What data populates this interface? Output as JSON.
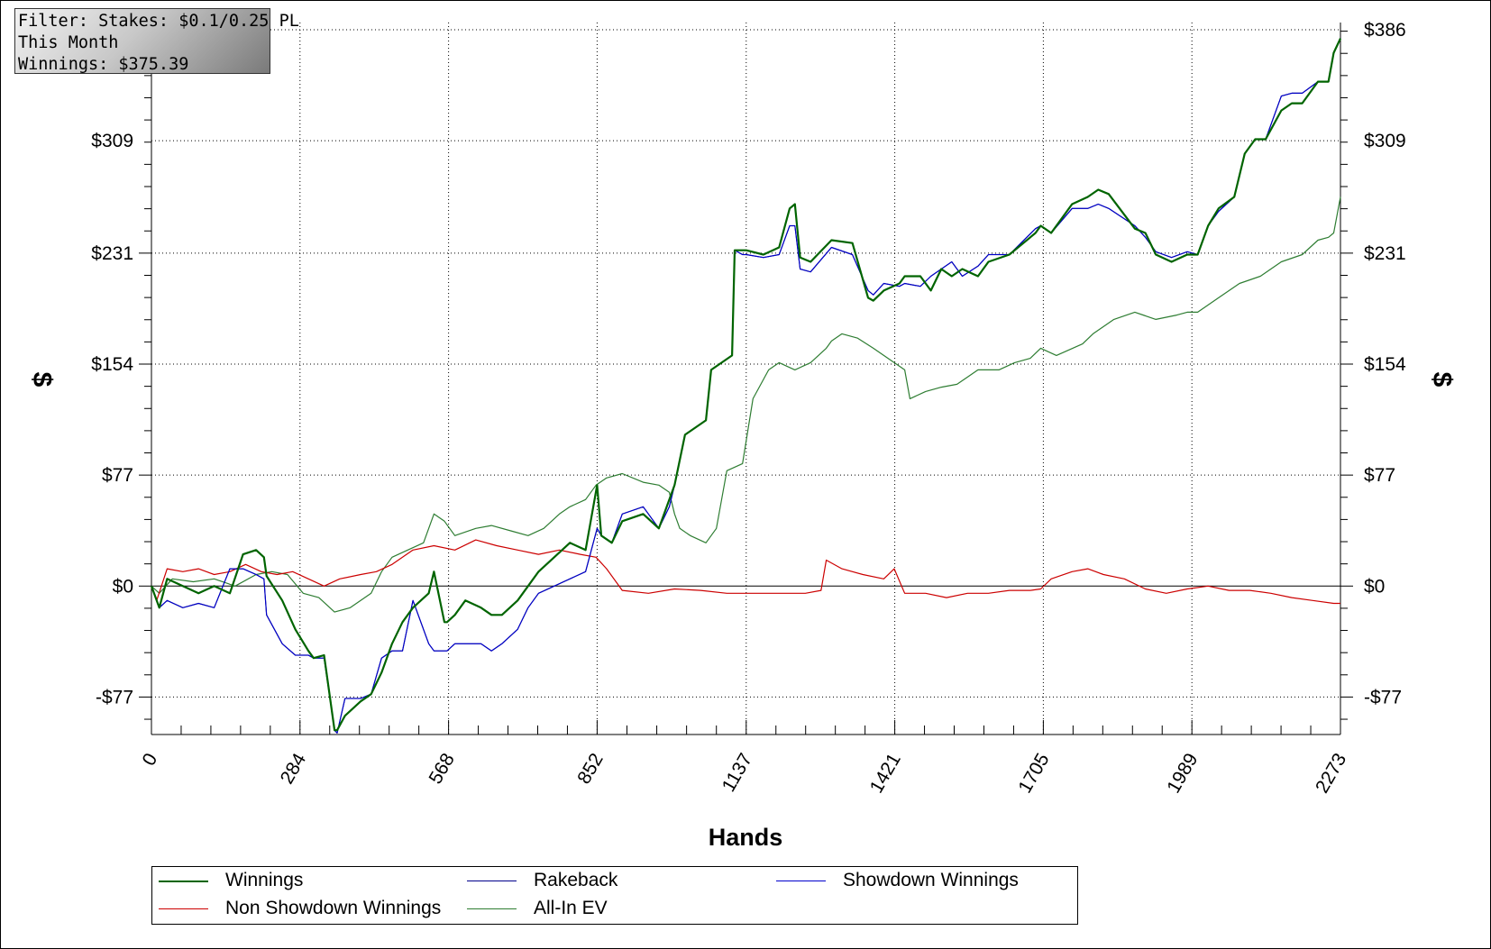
{
  "filter_box": {
    "line1": "Filter: Stakes: $0.1/0.25 PL",
    "line2": "This Month",
    "line3": "Winnings: $375.39"
  },
  "chart_data": {
    "type": "line",
    "xlabel": "Hands",
    "ylabel": "$",
    "xlim": [
      0,
      2273
    ],
    "ylim": [
      -103,
      391
    ],
    "x_ticks": [
      0,
      284,
      568,
      852,
      1137,
      1421,
      1705,
      1989,
      2273
    ],
    "y_ticks": [
      -77,
      0,
      77,
      154,
      231,
      309,
      386
    ],
    "y_tick_labels": [
      "-$77",
      "$0",
      "$77",
      "$154",
      "$231",
      "$309",
      "$386"
    ],
    "grid": true,
    "legend_placement": "bottom",
    "series": [
      {
        "name": "Winnings",
        "color": "#006400",
        "x": [
          0,
          15,
          30,
          60,
          90,
          120,
          150,
          175,
          200,
          215,
          220,
          250,
          275,
          300,
          310,
          330,
          350,
          355,
          370,
          400,
          420,
          440,
          460,
          480,
          500,
          530,
          540,
          560,
          565,
          580,
          600,
          630,
          650,
          670,
          700,
          720,
          740,
          770,
          800,
          830,
          852,
          860,
          880,
          900,
          940,
          970,
          990,
          1000,
          1020,
          1060,
          1070,
          1090,
          1110,
          1115,
          1130,
          1137,
          1170,
          1200,
          1220,
          1230,
          1240,
          1260,
          1300,
          1340,
          1370,
          1380,
          1400,
          1430,
          1440,
          1470,
          1490,
          1510,
          1530,
          1550,
          1580,
          1600,
          1640,
          1690,
          1700,
          1720,
          1760,
          1790,
          1810,
          1830,
          1880,
          1900,
          1920,
          1950,
          1980,
          2000,
          2020,
          2040,
          2070,
          2090,
          2110,
          2130,
          2160,
          2180,
          2200,
          2230,
          2250,
          2260,
          2273
        ],
        "y": [
          0,
          -15,
          5,
          0,
          -5,
          0,
          -5,
          22,
          25,
          20,
          7,
          -10,
          -30,
          -45,
          -50,
          -48,
          -100,
          -100,
          -90,
          -80,
          -75,
          -60,
          -40,
          -25,
          -15,
          -5,
          10,
          -25,
          -25,
          -20,
          -10,
          -15,
          -20,
          -20,
          -10,
          0,
          10,
          20,
          30,
          25,
          70,
          35,
          30,
          45,
          50,
          40,
          60,
          70,
          105,
          115,
          150,
          155,
          160,
          233,
          233,
          233,
          230,
          235,
          262,
          265,
          228,
          225,
          240,
          238,
          200,
          198,
          205,
          210,
          215,
          215,
          205,
          220,
          215,
          220,
          215,
          225,
          230,
          245,
          250,
          245,
          265,
          270,
          275,
          272,
          248,
          245,
          230,
          225,
          230,
          230,
          250,
          262,
          270,
          300,
          310,
          310,
          330,
          335,
          335,
          350,
          350,
          370,
          380
        ]
      },
      {
        "name": "Rakeback",
        "color": "#00008b",
        "x": [
          0,
          15,
          30,
          60,
          90,
          120,
          150,
          175,
          200,
          215,
          220,
          250,
          275,
          300,
          310,
          330,
          350,
          355,
          370,
          400,
          420,
          440,
          460,
          480,
          500,
          530,
          540,
          560,
          565,
          580,
          600,
          630,
          650,
          670,
          700,
          720,
          740,
          770,
          800,
          830,
          852,
          860,
          880,
          900,
          940,
          970,
          990,
          1000,
          1020,
          1060,
          1070,
          1090,
          1110,
          1115,
          1130,
          1137,
          1170,
          1200,
          1220,
          1230,
          1240,
          1260,
          1300,
          1340,
          1370,
          1380,
          1400,
          1430,
          1440,
          1470,
          1490,
          1510,
          1530,
          1550,
          1580,
          1600,
          1640,
          1690,
          1700,
          1720,
          1760,
          1790,
          1810,
          1830,
          1880,
          1900,
          1920,
          1950,
          1980,
          2000,
          2020,
          2040,
          2070,
          2090,
          2110,
          2130,
          2160,
          2180,
          2200,
          2230,
          2250,
          2260,
          2273
        ],
        "y": [
          0,
          -15,
          -10,
          -15,
          -12,
          -15,
          12,
          12,
          8,
          5,
          -20,
          -40,
          -48,
          -48,
          -50,
          -50,
          -100,
          -102,
          -78,
          -78,
          -75,
          -50,
          -45,
          -45,
          -10,
          -40,
          -45,
          -45,
          -45,
          -40,
          -40,
          -40,
          -45,
          -40,
          -30,
          -15,
          -5,
          0,
          5,
          10,
          40,
          35,
          30,
          50,
          55,
          40,
          55,
          70,
          105,
          115,
          150,
          155,
          160,
          233,
          230,
          230,
          228,
          230,
          250,
          250,
          220,
          218,
          235,
          230,
          205,
          202,
          210,
          208,
          210,
          208,
          215,
          220,
          225,
          215,
          222,
          230,
          230,
          248,
          250,
          245,
          262,
          262,
          265,
          262,
          250,
          242,
          232,
          228,
          232,
          230,
          250,
          260,
          270,
          300,
          310,
          310,
          340,
          342,
          342,
          350,
          350,
          370,
          380
        ]
      },
      {
        "name": "Showdown Winnings",
        "color": "#0000cd",
        "x": [
          0,
          15,
          30,
          60,
          90,
          120,
          150,
          175,
          200,
          215,
          220,
          250,
          275,
          300,
          310,
          330,
          350,
          355,
          370,
          400,
          420,
          440,
          460,
          480,
          500,
          530,
          540,
          560,
          565,
          580,
          600,
          630,
          650,
          670,
          700,
          720,
          740,
          770,
          800,
          830,
          852,
          860,
          880,
          900,
          940,
          970,
          990,
          1000,
          1020,
          1060,
          1070,
          1090,
          1110,
          1115,
          1130,
          1137,
          1170,
          1200,
          1220,
          1230,
          1240,
          1260,
          1300,
          1340,
          1370,
          1380,
          1400,
          1430,
          1440,
          1470,
          1490,
          1510,
          1530,
          1550,
          1580,
          1600,
          1640,
          1690,
          1700,
          1720,
          1760,
          1790,
          1810,
          1830,
          1880,
          1900,
          1920,
          1950,
          1980,
          2000,
          2020,
          2040,
          2070,
          2090,
          2110,
          2130,
          2160,
          2180,
          2200,
          2230,
          2250,
          2260,
          2273
        ],
        "y": [
          0,
          -15,
          -10,
          -15,
          -12,
          -15,
          12,
          12,
          8,
          5,
          -20,
          -40,
          -48,
          -48,
          -50,
          -50,
          -100,
          -102,
          -78,
          -78,
          -75,
          -50,
          -45,
          -45,
          -10,
          -40,
          -45,
          -45,
          -45,
          -40,
          -40,
          -40,
          -45,
          -40,
          -30,
          -15,
          -5,
          0,
          5,
          10,
          40,
          35,
          30,
          50,
          55,
          40,
          55,
          70,
          105,
          115,
          150,
          155,
          160,
          233,
          230,
          230,
          228,
          230,
          250,
          250,
          220,
          218,
          235,
          230,
          205,
          202,
          210,
          208,
          210,
          208,
          215,
          220,
          225,
          215,
          222,
          230,
          230,
          248,
          250,
          245,
          262,
          262,
          265,
          262,
          250,
          242,
          232,
          228,
          232,
          230,
          250,
          260,
          270,
          300,
          310,
          310,
          340,
          342,
          342,
          350,
          350,
          370,
          380
        ]
      },
      {
        "name": "Non Showdown Winnings",
        "color": "#cc0000",
        "x": [
          0,
          10,
          30,
          60,
          90,
          120,
          150,
          180,
          210,
          240,
          270,
          300,
          330,
          360,
          400,
          430,
          460,
          500,
          540,
          580,
          620,
          660,
          700,
          740,
          780,
          820,
          850,
          870,
          900,
          950,
          1000,
          1050,
          1100,
          1150,
          1200,
          1250,
          1280,
          1290,
          1320,
          1360,
          1400,
          1420,
          1440,
          1480,
          1520,
          1560,
          1600,
          1640,
          1680,
          1700,
          1720,
          1760,
          1790,
          1820,
          1860,
          1900,
          1940,
          1980,
          2020,
          2060,
          2100,
          2140,
          2180,
          2220,
          2260,
          2273
        ],
        "y": [
          0,
          -10,
          12,
          10,
          12,
          8,
          10,
          15,
          10,
          8,
          10,
          5,
          0,
          5,
          8,
          10,
          15,
          25,
          28,
          25,
          32,
          28,
          25,
          22,
          25,
          22,
          20,
          12,
          -3,
          -5,
          -2,
          -3,
          -5,
          -5,
          -5,
          -5,
          -3,
          18,
          12,
          8,
          5,
          12,
          -5,
          -5,
          -8,
          -5,
          -5,
          -3,
          -3,
          -2,
          5,
          10,
          12,
          8,
          5,
          -2,
          -5,
          -2,
          0,
          -3,
          -3,
          -5,
          -8,
          -10,
          -12,
          -12
        ]
      },
      {
        "name": "All-In EV",
        "color": "#2e7d32",
        "x": [
          0,
          15,
          40,
          80,
          120,
          160,
          200,
          230,
          260,
          290,
          320,
          350,
          380,
          420,
          440,
          460,
          490,
          520,
          540,
          560,
          580,
          620,
          650,
          690,
          720,
          750,
          780,
          800,
          830,
          850,
          870,
          900,
          940,
          970,
          990,
          1000,
          1010,
          1030,
          1060,
          1080,
          1100,
          1130,
          1150,
          1180,
          1200,
          1230,
          1260,
          1290,
          1300,
          1320,
          1350,
          1380,
          1400,
          1420,
          1440,
          1450,
          1480,
          1510,
          1540,
          1560,
          1580,
          1620,
          1650,
          1680,
          1700,
          1730,
          1780,
          1800,
          1840,
          1880,
          1920,
          1960,
          1980,
          2000,
          2040,
          2080,
          2120,
          2160,
          2200,
          2230,
          2250,
          2260,
          2273
        ],
        "y": [
          0,
          -5,
          5,
          3,
          5,
          0,
          8,
          10,
          8,
          -5,
          -8,
          -18,
          -15,
          -5,
          10,
          20,
          25,
          30,
          50,
          45,
          35,
          40,
          42,
          38,
          35,
          40,
          50,
          55,
          60,
          70,
          75,
          78,
          72,
          70,
          65,
          50,
          40,
          35,
          30,
          40,
          80,
          85,
          130,
          150,
          155,
          150,
          155,
          165,
          170,
          175,
          172,
          165,
          160,
          155,
          150,
          130,
          135,
          138,
          140,
          145,
          150,
          150,
          155,
          158,
          165,
          160,
          168,
          175,
          185,
          190,
          185,
          188,
          190,
          190,
          200,
          210,
          215,
          225,
          230,
          240,
          242,
          245,
          270
        ]
      }
    ]
  },
  "legend": {
    "items": [
      {
        "name": "Winnings",
        "color": "#006400"
      },
      {
        "name": "Rakeback",
        "color": "#00008b"
      },
      {
        "name": "Showdown Winnings",
        "color": "#0000cd"
      },
      {
        "name": "Non Showdown Winnings",
        "color": "#cc0000"
      },
      {
        "name": "All-In EV",
        "color": "#2e7d32"
      }
    ]
  }
}
